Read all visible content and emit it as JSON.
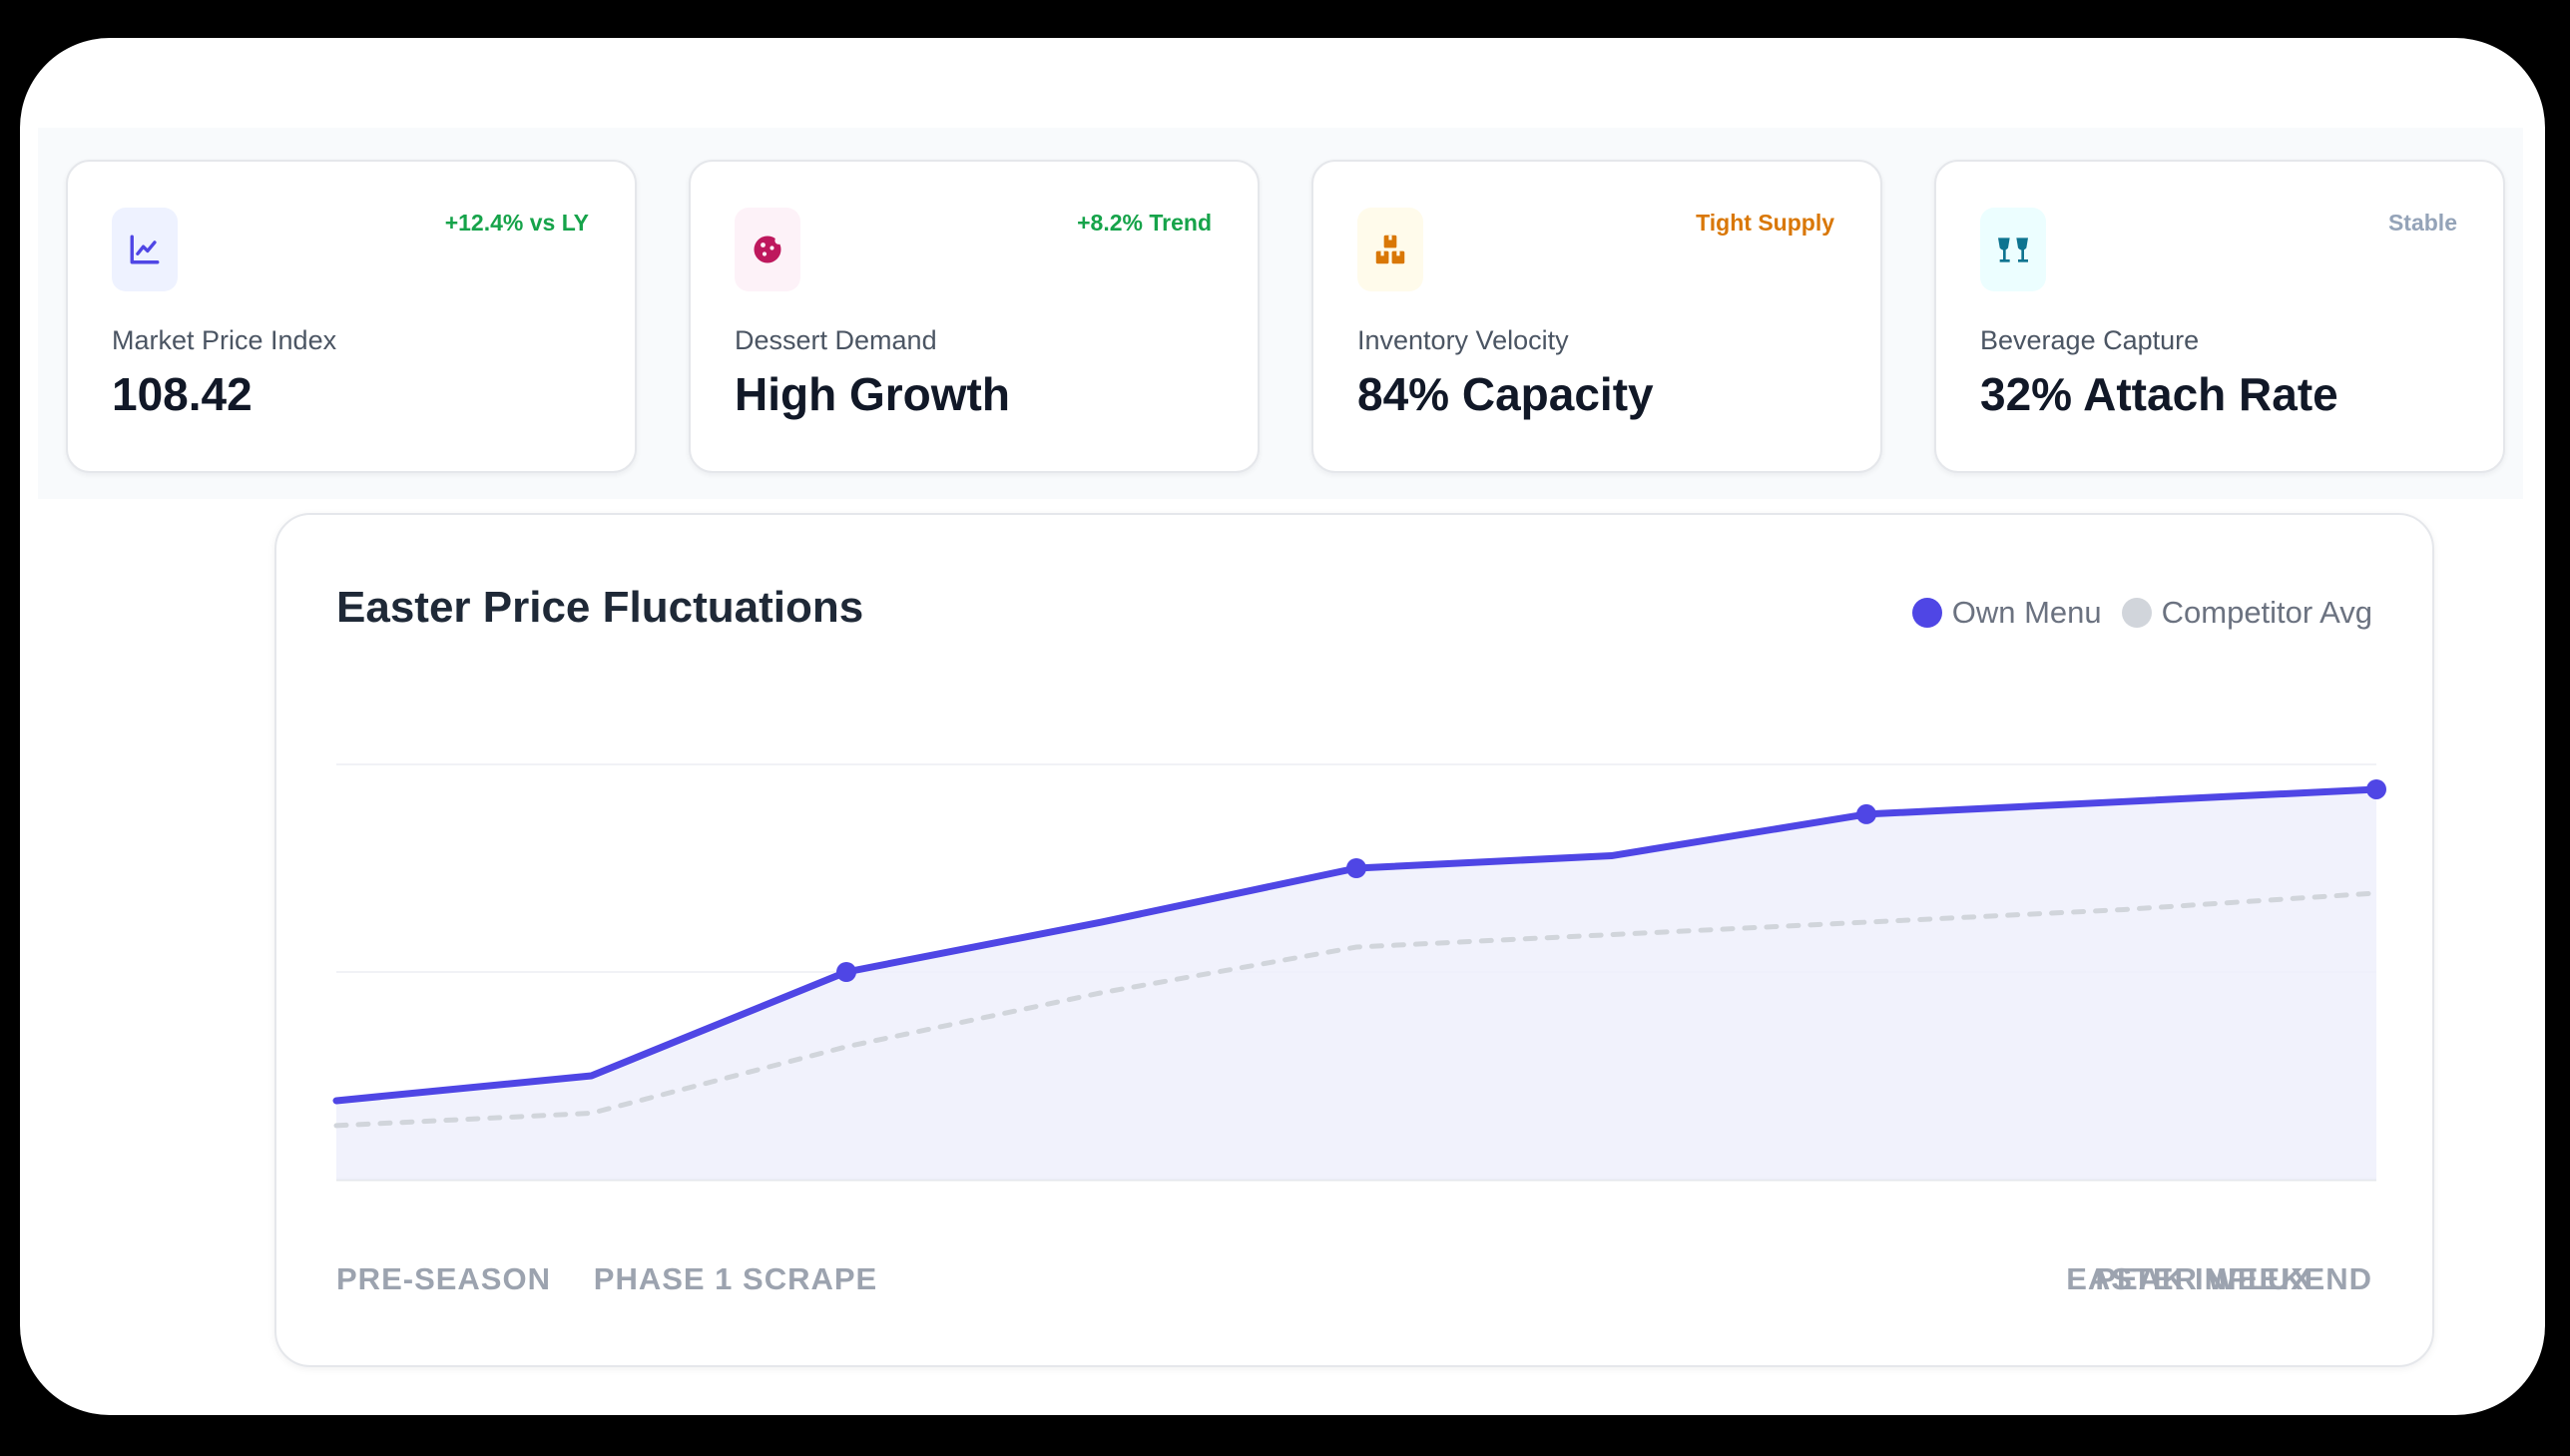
{
  "stat_cards": [
    {
      "icon": "line-chart-icon",
      "icon_color": "#4f46e5",
      "icon_bg": "#eef2ff",
      "trend": "+12.4% vs LY",
      "trend_color": "#16a34a",
      "label": "Market Price Index",
      "value": "108.42"
    },
    {
      "icon": "cookie-icon",
      "icon_color": "#be185d",
      "icon_bg": "#fdf2f8",
      "trend": "+8.2% Trend",
      "trend_color": "#16a34a",
      "label": "Dessert Demand",
      "value": "High Growth"
    },
    {
      "icon": "boxes-icon",
      "icon_color": "#d97706",
      "icon_bg": "#fffbeb",
      "trend": "Tight Supply",
      "trend_color": "#d97706",
      "label": "Inventory Velocity",
      "value": "84% Capacity"
    },
    {
      "icon": "cheers-glasses-icon",
      "icon_color": "#0e7490",
      "icon_bg": "#ecfeff",
      "trend": "Stable",
      "trend_color": "#94a3b8",
      "label": "Beverage Capture",
      "value": "32% Attach Rate"
    }
  ],
  "chart_data": {
    "type": "area",
    "title": "Easter Price Fluctuations",
    "x": [
      0,
      1,
      2,
      3,
      4,
      5,
      6,
      7,
      8
    ],
    "tick_labels": [
      "PRE-SEASON",
      "PHASE 1 SCRAPE",
      "PEAK INFLUX",
      "EASTER WEEKEND"
    ],
    "ylim": [
      0,
      100
    ],
    "grid": true,
    "legend_position": "top-right",
    "series": [
      {
        "name": "Own Menu",
        "color": "#4f46e5",
        "style": "solid",
        "markers": [
          false,
          false,
          true,
          false,
          true,
          false,
          true,
          false,
          true
        ],
        "values": [
          19,
          25,
          50,
          62,
          75,
          78,
          88,
          91,
          94
        ]
      },
      {
        "name": "Competitor Avg",
        "color": "#d1d5db",
        "style": "dashed",
        "values": [
          13,
          16,
          32,
          45,
          56,
          59,
          62,
          65,
          69
        ]
      }
    ]
  }
}
